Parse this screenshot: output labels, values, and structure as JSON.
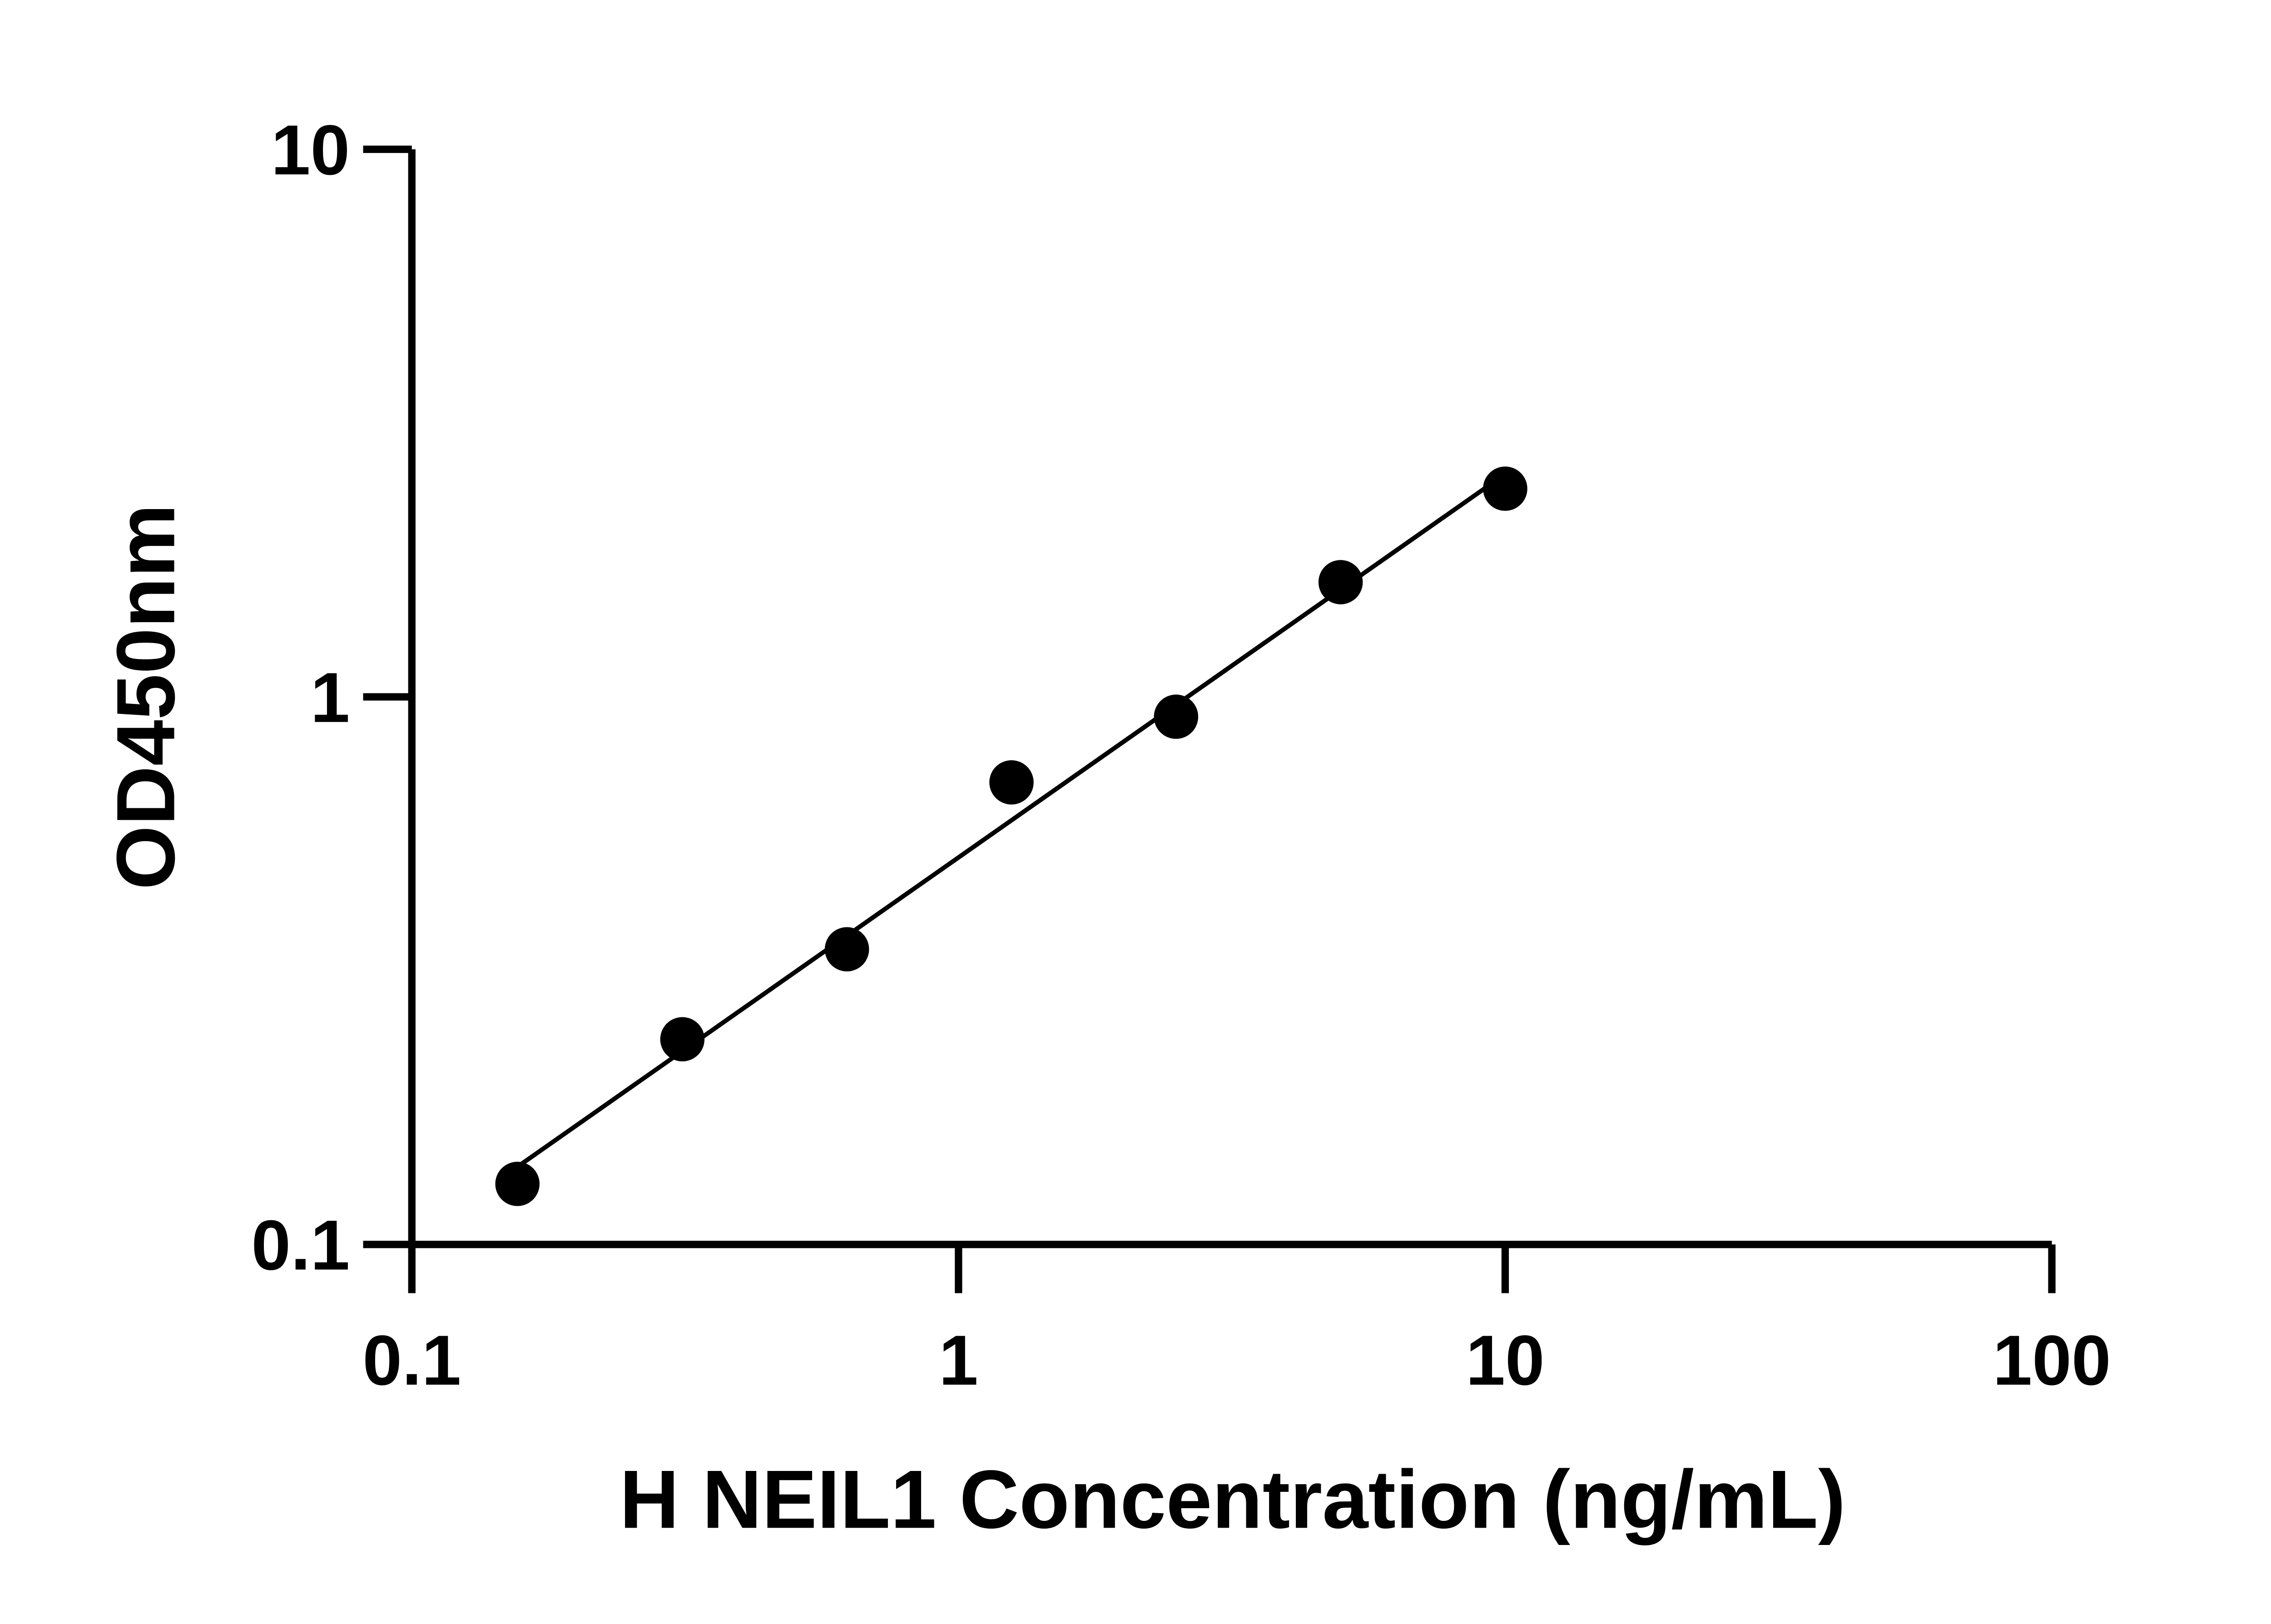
{
  "chart_data": {
    "type": "scatter",
    "title": "",
    "xlabel": "H NEIL1 Concentration (ng/mL)",
    "ylabel": "OD450nm",
    "xscale": "log",
    "yscale": "log",
    "xlim": [
      0.1,
      100
    ],
    "ylim": [
      0.1,
      10
    ],
    "xticks": [
      "0.1",
      "1",
      "10",
      "100"
    ],
    "yticks": [
      "0.1",
      "1",
      "10"
    ],
    "grid": false,
    "legend": "none",
    "fit_line": "log-log linear",
    "color": "#000000",
    "x": [
      0.156,
      0.3125,
      0.625,
      1.25,
      2.5,
      5,
      10
    ],
    "y": [
      0.129,
      0.237,
      0.346,
      0.698,
      0.92,
      1.62,
      2.4
    ]
  }
}
